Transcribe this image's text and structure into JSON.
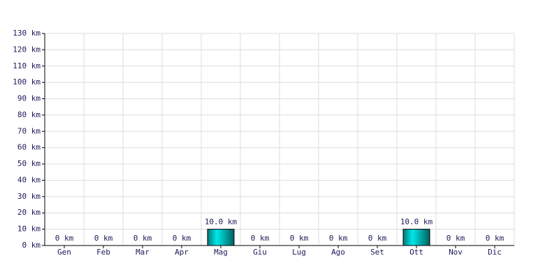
{
  "chart_data": {
    "type": "bar",
    "categories": [
      "Gen",
      "Feb",
      "Mar",
      "Apr",
      "Mag",
      "Giu",
      "Lug",
      "Ago",
      "Set",
      "Ott",
      "Nov",
      "Dic"
    ],
    "values": [
      0,
      0,
      0,
      0,
      10,
      0,
      0,
      0,
      0,
      10,
      0,
      0
    ],
    "value_labels": [
      "0 km",
      "0 km",
      "0 km",
      "0 km",
      "10.0 km",
      "0 km",
      "0 km",
      "0 km",
      "0 km",
      "10.0 km",
      "0 km",
      "0 km"
    ],
    "color": "#00d0d0",
    "ylim": [
      0,
      130
    ],
    "yticks": [
      {
        "value": 0,
        "label": "0 km"
      },
      {
        "value": 10,
        "label": "10 km"
      },
      {
        "value": 20,
        "label": "20 km"
      },
      {
        "value": 30,
        "label": "30 km"
      },
      {
        "value": 40,
        "label": "40 km"
      },
      {
        "value": 50,
        "label": "50 km"
      },
      {
        "value": 60,
        "label": "60 km"
      },
      {
        "value": 70,
        "label": "70 km"
      },
      {
        "value": 80,
        "label": "80 km"
      },
      {
        "value": 90,
        "label": "90 km"
      },
      {
        "value": 100,
        "label": "100 km"
      },
      {
        "value": 110,
        "label": "110 km"
      },
      {
        "value": 120,
        "label": "120 km"
      },
      {
        "value": 130,
        "label": "130 km"
      }
    ],
    "grid": true
  }
}
